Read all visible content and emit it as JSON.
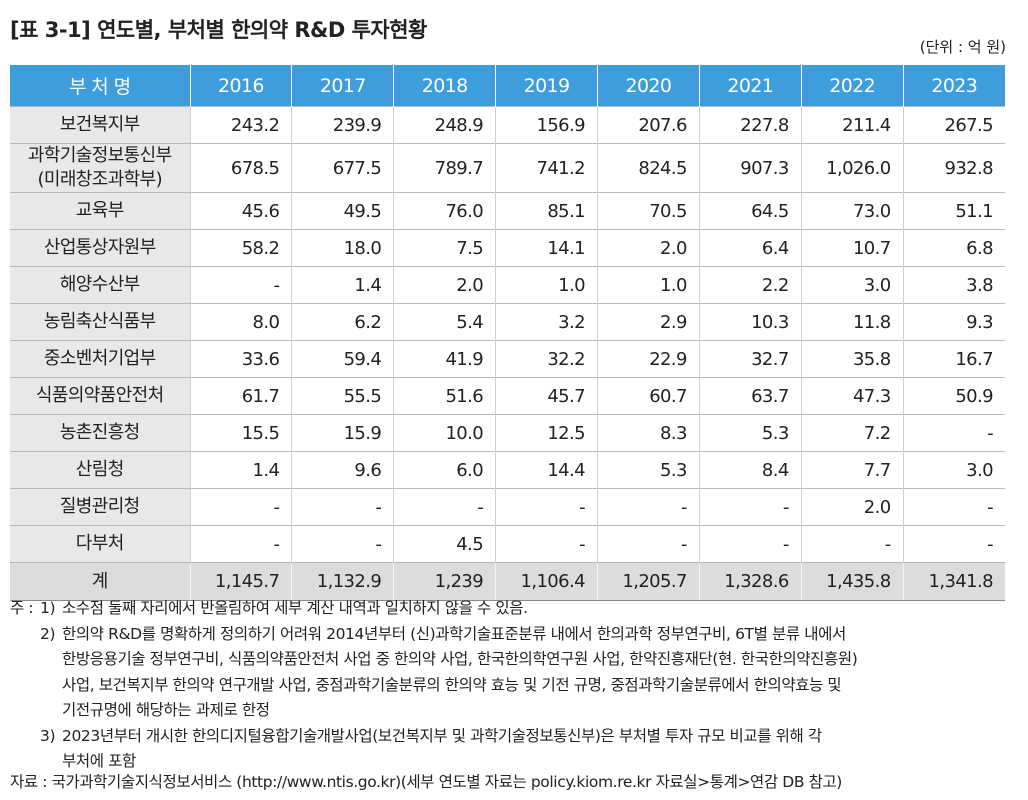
{
  "header": {
    "title": "[표 3-1] 연도별, 부처별 한의약 R&D 투자현황",
    "unit": "(단위 : 억 원)"
  },
  "table": {
    "columns": [
      "부 처 명",
      "2016",
      "2017",
      "2018",
      "2019",
      "2020",
      "2021",
      "2022",
      "2023"
    ],
    "rows": [
      {
        "name": [
          "보건복지부"
        ],
        "cells": [
          "243.2",
          "239.9",
          "248.9",
          "156.9",
          "207.6",
          "227.8",
          "211.4",
          "267.5"
        ]
      },
      {
        "name": [
          "과학기술정보통신부",
          "(미래창조과학부)"
        ],
        "cells": [
          "678.5",
          "677.5",
          "789.7",
          "741.2",
          "824.5",
          "907.3",
          "1,026.0",
          "932.8"
        ]
      },
      {
        "name": [
          "교육부"
        ],
        "cells": [
          "45.6",
          "49.5",
          "76.0",
          "85.1",
          "70.5",
          "64.5",
          "73.0",
          "51.1"
        ]
      },
      {
        "name": [
          "산업통상자원부"
        ],
        "cells": [
          "58.2",
          "18.0",
          "7.5",
          "14.1",
          "2.0",
          "6.4",
          "10.7",
          "6.8"
        ]
      },
      {
        "name": [
          "해양수산부"
        ],
        "cells": [
          "-",
          "1.4",
          "2.0",
          "1.0",
          "1.0",
          "2.2",
          "3.0",
          "3.8"
        ]
      },
      {
        "name": [
          "농림축산식품부"
        ],
        "cells": [
          "8.0",
          "6.2",
          "5.4",
          "3.2",
          "2.9",
          "10.3",
          "11.8",
          "9.3"
        ]
      },
      {
        "name": [
          "중소벤처기업부"
        ],
        "cells": [
          "33.6",
          "59.4",
          "41.9",
          "32.2",
          "22.9",
          "32.7",
          "35.8",
          "16.7"
        ]
      },
      {
        "name": [
          "식품의약품안전처"
        ],
        "cells": [
          "61.7",
          "55.5",
          "51.6",
          "45.7",
          "60.7",
          "63.7",
          "47.3",
          "50.9"
        ]
      },
      {
        "name": [
          "농촌진흥청"
        ],
        "cells": [
          "15.5",
          "15.9",
          "10.0",
          "12.5",
          "8.3",
          "5.3",
          "7.2",
          "-"
        ]
      },
      {
        "name": [
          "산림청"
        ],
        "cells": [
          "1.4",
          "9.6",
          "6.0",
          "14.4",
          "5.3",
          "8.4",
          "7.7",
          "3.0"
        ]
      },
      {
        "name": [
          "질병관리청"
        ],
        "cells": [
          "-",
          "-",
          "-",
          "-",
          "-",
          "-",
          "2.0",
          "-"
        ]
      },
      {
        "name": [
          "다부처"
        ],
        "cells": [
          "-",
          "-",
          "4.5",
          "-",
          "-",
          "-",
          "-",
          "-"
        ]
      }
    ],
    "total": {
      "name": [
        "계"
      ],
      "cells": [
        "1,145.7",
        "1,132.9",
        "1,239",
        "1,106.4",
        "1,205.7",
        "1,328.6",
        "1,435.8",
        "1,341.8"
      ]
    }
  },
  "notes": {
    "prefix": "주 :",
    "items": [
      {
        "num": "1)",
        "lines": [
          "소수점 둘째 자리에서 반올림하여 세부 계산 내역과 일치하지 않을 수 있음."
        ]
      },
      {
        "num": "2)",
        "lines": [
          "한의약 R&D를 명확하게 정의하기 어려워 2014년부터 (신)과학기술표준분류 내에서 한의과학 정부연구비, 6T별 분류 내에서",
          "한방응용기술 정부연구비, 식품의약품안전처 사업 중 한의약 사업, 한국한의학연구원 사업, 한약진흥재단(현. 한국한의약진흥원)",
          "사업, 보건복지부 한의약 연구개발 사업, 중점과학기술분류의 한의약 효능 및 기전 규명, 중점과학기술분류에서 한의약효능 및",
          "기전규명에 해당하는 과제로 한정"
        ]
      },
      {
        "num": "3)",
        "lines": [
          "2023년부터 개시한 한의디지털융합기술개발사업(보건복지부 및 과학기술정보통신부)은 부처별 투자 규모 비교를 위해 각",
          "부처에 포함"
        ]
      }
    ]
  },
  "source": "자료 : 국가과학기술지식정보서비스 (http://www.ntis.go.kr)(세부 연도별 자료는 policy.kiom.re.kr 자료실>통계>연감 DB 참고)"
}
